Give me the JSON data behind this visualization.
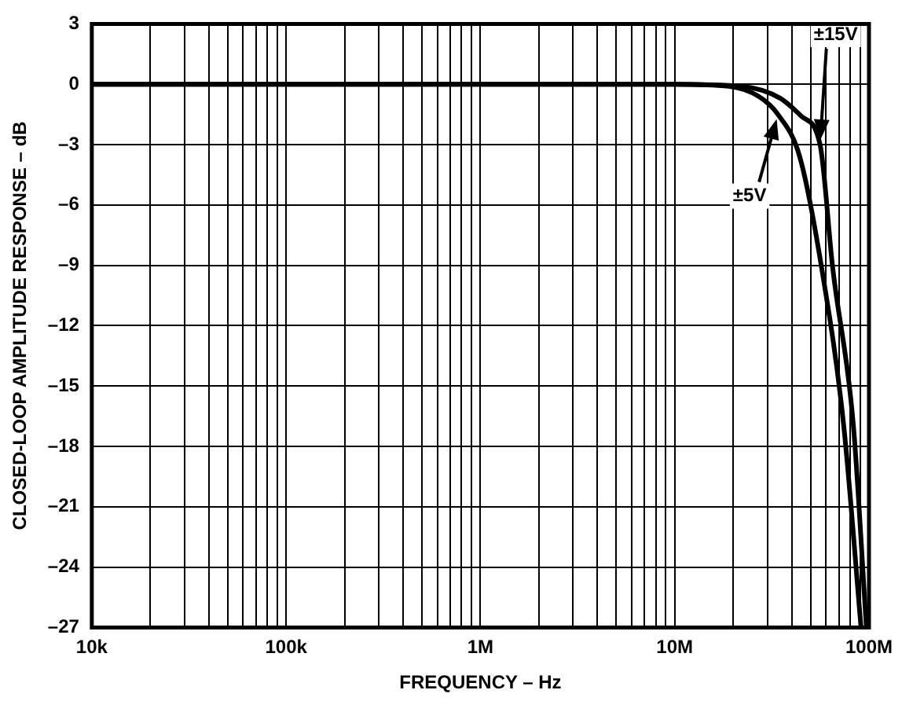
{
  "chart_data": {
    "type": "line",
    "xlabel": "FREQUENCY – Hz",
    "ylabel": "CLOSED-LOOP AMPLITUDE RESPONSE – dB",
    "log": "x",
    "grid": true,
    "legend": false,
    "marker": "none",
    "line_style": "solid",
    "xlim": [
      10000,
      100000000
    ],
    "xticks": [
      {
        "value": 10000,
        "label": "10k"
      },
      {
        "value": 20000,
        "label": null
      },
      {
        "value": 30000,
        "label": null
      },
      {
        "value": 40000,
        "label": null
      },
      {
        "value": 50000,
        "label": null
      },
      {
        "value": 60000,
        "label": null
      },
      {
        "value": 70000,
        "label": null
      },
      {
        "value": 80000,
        "label": null
      },
      {
        "value": 90000,
        "label": null
      },
      {
        "value": 100000,
        "label": "100k"
      },
      {
        "value": 200000,
        "label": null
      },
      {
        "value": 300000,
        "label": null
      },
      {
        "value": 400000,
        "label": null
      },
      {
        "value": 500000,
        "label": null
      },
      {
        "value": 600000,
        "label": null
      },
      {
        "value": 700000,
        "label": null
      },
      {
        "value": 800000,
        "label": null
      },
      {
        "value": 900000,
        "label": null
      },
      {
        "value": 1000000,
        "label": "1M"
      },
      {
        "value": 2000000,
        "label": null
      },
      {
        "value": 3000000,
        "label": null
      },
      {
        "value": 4000000,
        "label": null
      },
      {
        "value": 5000000,
        "label": null
      },
      {
        "value": 6000000,
        "label": null
      },
      {
        "value": 7000000,
        "label": null
      },
      {
        "value": 8000000,
        "label": null
      },
      {
        "value": 9000000,
        "label": null
      },
      {
        "value": 10000000,
        "label": "10M"
      },
      {
        "value": 20000000,
        "label": null
      },
      {
        "value": 30000000,
        "label": null
      },
      {
        "value": 40000000,
        "label": null
      },
      {
        "value": 50000000,
        "label": null
      },
      {
        "value": 60000000,
        "label": null
      },
      {
        "value": 70000000,
        "label": null
      },
      {
        "value": 80000000,
        "label": null
      },
      {
        "value": 90000000,
        "label": null
      },
      {
        "value": 100000000,
        "label": "100M"
      }
    ],
    "ylim": [
      -27,
      3
    ],
    "yticks": [
      {
        "value": -27,
        "label": "–27"
      },
      {
        "value": -24,
        "label": "–24"
      },
      {
        "value": -21,
        "label": "–21"
      },
      {
        "value": -18,
        "label": "–18"
      },
      {
        "value": -15,
        "label": "–15"
      },
      {
        "value": -12,
        "label": "–12"
      },
      {
        "value": -9,
        "label": "–9"
      },
      {
        "value": -6,
        "label": "–6"
      },
      {
        "value": -3,
        "label": "–3"
      },
      0,
      3
    ],
    "series": [
      {
        "name": "±5V",
        "color": "#000000",
        "x": [
          10000,
          10000000,
          19000000,
          27000000,
          34000000,
          44000000,
          57000000,
          74000000,
          91000000
        ],
        "values": [
          0,
          0,
          -0.1,
          -0.6,
          -1.5,
          -3.6,
          -9.1,
          -16.9,
          -27
        ]
      },
      {
        "name": "±15V",
        "color": "#000000",
        "x": [
          10000,
          10000000,
          22000000,
          35000000,
          45000000,
          56000000,
          65000000,
          83000000,
          97000000
        ],
        "values": [
          0,
          0,
          -0.1,
          -0.7,
          -1.6,
          -3.0,
          -9.1,
          -16.9,
          -27
        ]
      }
    ]
  }
}
